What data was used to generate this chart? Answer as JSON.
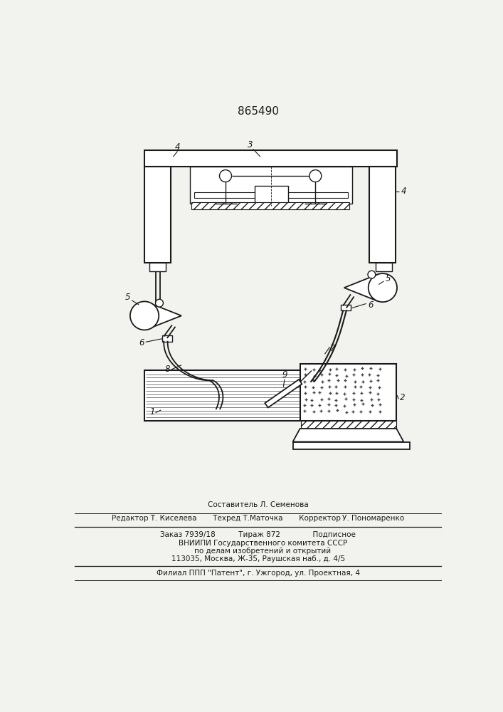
{
  "title": "865490",
  "bg_color": "#f2f2ee",
  "line_color": "#1a1a1a",
  "footer_line1": "Составитель Л. Семенова",
  "footer_line2": "Редактор Т. Киселева       Техред Т.Маточка       Корректор У. Пономаренко",
  "footer_box1": "Заказ 7939/18          Тираж 872              Подписное",
  "footer_box2": "    ВНИИПИ Государственного комитета СССР",
  "footer_box3": "    по делам изобретений и открытий",
  "footer_box4": "113035, Москва, Ж-35, Раушская наб., д. 4/5",
  "footer_last": "Филиал ППП \"Патент\", г. Ужгород, ул. Проектная, 4"
}
